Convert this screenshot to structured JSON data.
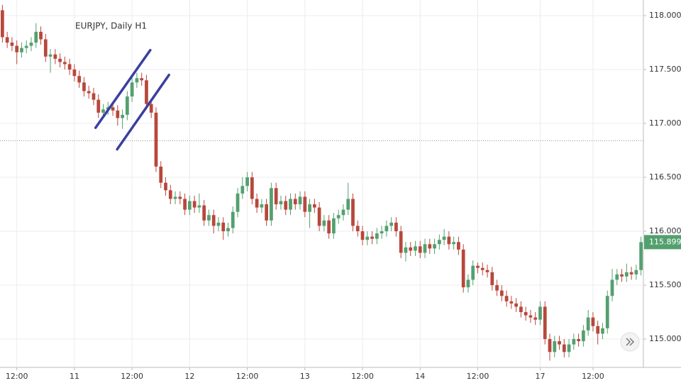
{
  "chart_data": {
    "type": "candlestick",
    "title": "EURJPY, Daily H1",
    "open": [
      118.05,
      117.8,
      117.75,
      117.72,
      117.66,
      117.7,
      117.72,
      117.75,
      117.85,
      117.78,
      117.62,
      117.64,
      117.6,
      117.57,
      117.55,
      117.5,
      117.44,
      117.38,
      117.3,
      117.28,
      117.22,
      117.1,
      117.13,
      117.15,
      117.12,
      117.05,
      117.08,
      117.25,
      117.38,
      117.42,
      117.4,
      117.18,
      117.1,
      116.6,
      116.45,
      116.38,
      116.3,
      116.32,
      116.3,
      116.2,
      116.28,
      116.22,
      116.24,
      116.1,
      116.15,
      116.05,
      116.08,
      116.0,
      116.03,
      116.18,
      116.35,
      116.42,
      116.5,
      116.3,
      116.22,
      116.25,
      116.1,
      116.4,
      116.25,
      116.28,
      116.2,
      116.3,
      116.25,
      116.32,
      116.18,
      116.25,
      116.22,
      116.05,
      116.1,
      115.98,
      116.12,
      116.15,
      116.2,
      116.3,
      116.05,
      116.0,
      115.92,
      115.95,
      115.93,
      115.98,
      116.0,
      116.05,
      116.08,
      116.0,
      115.8,
      115.85,
      115.82,
      115.86,
      115.8,
      115.88,
      115.84,
      115.88,
      115.92,
      115.95,
      115.88,
      115.9,
      115.83,
      115.48,
      115.55,
      115.68,
      115.66,
      115.64,
      115.62,
      115.5,
      115.45,
      115.4,
      115.35,
      115.33,
      115.3,
      115.25,
      115.22,
      115.2,
      115.18,
      115.3,
      115.0,
      114.88,
      114.98,
      114.95,
      114.88,
      114.95,
      115.0,
      114.98,
      115.08,
      115.2,
      115.12,
      115.05,
      115.1,
      115.4,
      115.55,
      115.6,
      115.58,
      115.62,
      115.6,
      115.64
    ],
    "high": [
      118.1,
      117.85,
      117.8,
      117.77,
      117.75,
      117.77,
      117.8,
      117.93,
      117.9,
      117.83,
      117.69,
      117.69,
      117.65,
      117.62,
      117.6,
      117.55,
      117.49,
      117.43,
      117.35,
      117.33,
      117.27,
      117.18,
      117.2,
      117.2,
      117.17,
      117.13,
      117.3,
      117.45,
      117.47,
      117.47,
      117.45,
      117.23,
      117.15,
      116.65,
      116.5,
      116.43,
      116.37,
      116.37,
      116.35,
      116.33,
      116.33,
      116.35,
      116.29,
      116.2,
      116.2,
      116.13,
      116.13,
      116.08,
      116.23,
      116.4,
      116.5,
      116.55,
      116.55,
      116.35,
      116.3,
      116.3,
      116.45,
      116.45,
      116.33,
      116.33,
      116.35,
      116.35,
      116.37,
      116.37,
      116.3,
      116.3,
      116.27,
      116.15,
      116.15,
      116.17,
      116.2,
      116.25,
      116.45,
      116.35,
      116.1,
      116.05,
      116.0,
      116.0,
      116.03,
      116.05,
      116.1,
      116.13,
      116.13,
      116.05,
      115.9,
      115.9,
      115.91,
      115.91,
      115.93,
      115.93,
      115.93,
      115.97,
      116.02,
      116.0,
      115.95,
      115.95,
      115.88,
      115.6,
      115.73,
      115.71,
      115.71,
      115.69,
      115.67,
      115.55,
      115.5,
      115.45,
      115.4,
      115.38,
      115.35,
      115.3,
      115.27,
      115.25,
      115.35,
      115.35,
      115.05,
      115.03,
      115.03,
      115.0,
      115.0,
      115.05,
      115.05,
      115.13,
      115.27,
      115.25,
      115.17,
      115.15,
      115.45,
      115.65,
      115.65,
      115.65,
      115.7,
      115.67,
      115.69,
      115.95
    ],
    "low": [
      117.75,
      117.7,
      117.67,
      117.55,
      117.61,
      117.65,
      117.67,
      117.7,
      117.73,
      117.57,
      117.47,
      117.55,
      117.52,
      117.5,
      117.45,
      117.39,
      117.33,
      117.25,
      117.23,
      117.17,
      117.05,
      117.05,
      117.08,
      117.07,
      116.98,
      116.95,
      117.03,
      117.2,
      117.33,
      117.35,
      117.13,
      117.05,
      116.55,
      116.4,
      116.33,
      116.25,
      116.25,
      116.25,
      116.15,
      116.15,
      116.17,
      116.17,
      116.05,
      116.05,
      115.98,
      116.0,
      115.92,
      115.95,
      115.98,
      116.13,
      116.3,
      116.37,
      116.25,
      116.17,
      116.17,
      116.05,
      116.05,
      116.2,
      116.2,
      116.15,
      116.15,
      116.2,
      116.2,
      116.13,
      116.03,
      116.17,
      116.0,
      116.0,
      115.93,
      115.93,
      116.07,
      116.1,
      116.15,
      116.0,
      115.95,
      115.87,
      115.87,
      115.88,
      115.88,
      115.93,
      115.95,
      116.0,
      115.95,
      115.75,
      115.72,
      115.77,
      115.77,
      115.75,
      115.75,
      115.79,
      115.79,
      115.83,
      115.87,
      115.83,
      115.83,
      115.78,
      115.43,
      115.43,
      115.5,
      115.61,
      115.59,
      115.57,
      115.45,
      115.4,
      115.35,
      115.3,
      115.28,
      115.25,
      115.2,
      115.17,
      115.15,
      115.13,
      115.13,
      114.95,
      114.8,
      114.83,
      114.9,
      114.83,
      114.83,
      114.9,
      114.93,
      114.93,
      115.03,
      115.07,
      114.95,
      115.0,
      115.05,
      115.35,
      115.5,
      115.53,
      115.53,
      115.55,
      115.55,
      115.59
    ],
    "close": [
      117.8,
      117.75,
      117.72,
      117.66,
      117.7,
      117.72,
      117.75,
      117.85,
      117.78,
      117.62,
      117.64,
      117.6,
      117.57,
      117.55,
      117.5,
      117.44,
      117.38,
      117.3,
      117.28,
      117.22,
      117.1,
      117.13,
      117.15,
      117.12,
      117.05,
      117.08,
      117.25,
      117.38,
      117.42,
      117.4,
      117.18,
      117.1,
      116.6,
      116.45,
      116.38,
      116.3,
      116.32,
      116.3,
      116.2,
      116.28,
      116.22,
      116.24,
      116.1,
      116.15,
      116.05,
      116.08,
      116.0,
      116.03,
      116.18,
      116.35,
      116.42,
      116.5,
      116.3,
      116.22,
      116.25,
      116.1,
      116.4,
      116.25,
      116.28,
      116.2,
      116.3,
      116.25,
      116.32,
      116.18,
      116.25,
      116.22,
      116.05,
      116.1,
      115.98,
      116.12,
      116.15,
      116.2,
      116.3,
      116.05,
      116.0,
      115.92,
      115.95,
      115.93,
      115.98,
      116.0,
      116.05,
      116.08,
      116.0,
      115.8,
      115.85,
      115.82,
      115.86,
      115.8,
      115.88,
      115.84,
      115.88,
      115.92,
      115.95,
      115.88,
      115.9,
      115.83,
      115.48,
      115.55,
      115.68,
      115.66,
      115.64,
      115.62,
      115.5,
      115.45,
      115.4,
      115.35,
      115.33,
      115.3,
      115.25,
      115.22,
      115.2,
      115.18,
      115.3,
      115.0,
      114.88,
      114.98,
      114.95,
      114.88,
      114.95,
      115.0,
      114.98,
      115.08,
      115.2,
      115.12,
      115.05,
      115.1,
      115.4,
      115.55,
      115.6,
      115.58,
      115.62,
      115.6,
      115.64,
      115.899
    ],
    "last_label": "115.8990",
    "up_color": "#53a06f",
    "down_color": "#b8473c",
    "ylim": [
      114.737,
      118.145
    ],
    "yticks": [
      {
        "value": 115,
        "label": "115.0000"
      },
      {
        "value": 115.5,
        "label": "115.5000"
      },
      {
        "value": 116,
        "label": "116.0000"
      },
      {
        "value": 116.5,
        "label": "116.5000"
      },
      {
        "value": 117,
        "label": "117.0000"
      },
      {
        "value": 117.5,
        "label": "117.5000"
      },
      {
        "value": 118,
        "label": "118.0000"
      }
    ],
    "xlim": [
      -0.5,
      133.5
    ],
    "xticks": [
      {
        "value": 3,
        "label": "12:00"
      },
      {
        "value": 15,
        "label": "11"
      },
      {
        "value": 27,
        "label": "12:00"
      },
      {
        "value": 39,
        "label": "12"
      },
      {
        "value": 51,
        "label": "12:00"
      },
      {
        "value": 63,
        "label": "13"
      },
      {
        "value": 75,
        "label": "12:00"
      },
      {
        "value": 87,
        "label": "14"
      },
      {
        "value": 99,
        "label": "12:00"
      },
      {
        "value": 112,
        "label": "17"
      },
      {
        "value": 123,
        "label": "12:00"
      }
    ],
    "reference_line": 116.84,
    "trendlines": [
      [
        19.4,
        116.96,
        30.8,
        117.68
      ],
      [
        23.9,
        116.76,
        34.7,
        117.45
      ]
    ],
    "trendline_color": "#3a3fa0",
    "grid": true
  }
}
